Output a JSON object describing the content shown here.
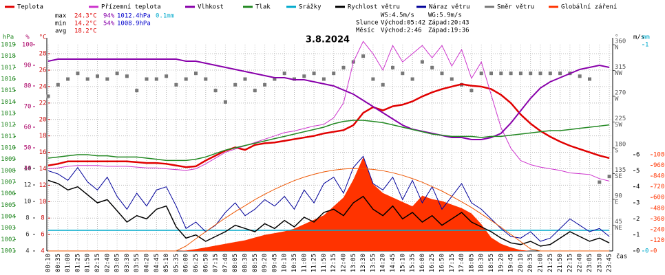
{
  "chart_data": {
    "type": "line",
    "title": "3.8.2024",
    "categories": [
      "00:10",
      "00:35",
      "01:00",
      "01:25",
      "01:50",
      "02:15",
      "02:40",
      "03:05",
      "03:30",
      "03:55",
      "04:20",
      "04:45",
      "05:10",
      "05:35",
      "06:00",
      "06:25",
      "06:50",
      "07:15",
      "07:40",
      "08:05",
      "08:30",
      "08:55",
      "09:20",
      "09:45",
      "10:10",
      "10:35",
      "11:00",
      "11:25",
      "11:50",
      "12:15",
      "12:40",
      "13:05",
      "13:30",
      "13:55",
      "14:20",
      "14:45",
      "15:10",
      "15:35",
      "16:00",
      "16:25",
      "16:50",
      "17:15",
      "17:40",
      "18:05",
      "18:30",
      "18:55",
      "19:20",
      "19:45",
      "20:10",
      "20:35",
      "21:00",
      "21:25",
      "21:50",
      "22:15",
      "22:40",
      "23:05",
      "23:30",
      "23:45"
    ],
    "x_label": "čas",
    "grid": true,
    "axes": {
      "pressure": {
        "unit": "hPa",
        "lim": [
          1001,
          1019
        ],
        "ticks": [
          1001,
          1002,
          1003,
          1004,
          1005,
          1006,
          1007,
          1008,
          1009,
          1010,
          1011,
          1012,
          1013,
          1014,
          1015,
          1016,
          1017,
          1018,
          1019
        ],
        "color": "#228822"
      },
      "humidity": {
        "unit": "%",
        "lim": [
          0,
          100
        ],
        "ticks": [
          40,
          50,
          60,
          70,
          80,
          90,
          100
        ],
        "color": "#aa0066"
      },
      "aux": {
        "lim": [
          4,
          29
        ],
        "ticks": [
          4,
          6,
          8,
          10,
          12,
          14
        ],
        "color": "#333333"
      },
      "temp": {
        "unit": "°C",
        "lim": [
          4,
          29.1
        ],
        "ticks": [
          4,
          6,
          8,
          10,
          12,
          14,
          16,
          18,
          20,
          22,
          24,
          26,
          28
        ],
        "color": "#cc0000"
      },
      "direction": {
        "unit": "°",
        "lim": [
          0,
          360
        ],
        "ticks": [
          {
            "value": 45,
            "label": "NE"
          },
          {
            "value": 90,
            "label": "E"
          },
          {
            "value": 135,
            "label": "SE"
          },
          {
            "value": 180,
            "label": "S"
          },
          {
            "value": 225,
            "label": "SW"
          },
          {
            "value": 270,
            "label": "W"
          },
          {
            "value": 315,
            "label": "NW"
          },
          {
            "value": 360,
            "label": "N"
          }
        ],
        "color": "#555555"
      },
      "wind": {
        "unit": "m/s",
        "lim": [
          0,
          12.86
        ],
        "ticks": [
          0,
          1,
          2,
          3,
          4,
          5,
          6
        ],
        "color": "#000000"
      },
      "rain": {
        "unit": "mm",
        "lim": [
          0,
          1
        ],
        "ticks": [
          0,
          1
        ],
        "color": "#00aacc"
      },
      "radiation": {
        "lim": [
          0,
          2314
        ],
        "ticks": [
          0,
          120,
          240,
          360,
          480,
          600,
          720,
          840,
          960,
          1080
        ],
        "color": "#ff3300"
      }
    },
    "series": [
      {
        "name": "Teplota",
        "color": "#e00000",
        "axis": "temp",
        "style": "line",
        "width": 2.5,
        "values": [
          14.4,
          14.6,
          14.9,
          14.9,
          14.9,
          14.9,
          14.9,
          14.9,
          14.9,
          14.8,
          14.7,
          14.7,
          14.6,
          14.4,
          14.2,
          14.3,
          15.0,
          15.6,
          16.2,
          16.6,
          16.3,
          16.9,
          17.1,
          17.2,
          17.4,
          17.6,
          17.8,
          18.0,
          18.3,
          18.5,
          18.7,
          19.3,
          20.8,
          21.5,
          21.1,
          21.6,
          21.8,
          22.2,
          22.8,
          23.3,
          23.7,
          24.0,
          24.3,
          24.1,
          24.0,
          23.7,
          23.0,
          22.0,
          20.6,
          19.5,
          18.6,
          17.9,
          17.3,
          16.8,
          16.4,
          16.0,
          15.6,
          15.3
        ]
      },
      {
        "name": "Přízemní teplota",
        "color": "#cc33cc",
        "axis": "temp",
        "style": "line",
        "width": 1,
        "values": [
          14.0,
          14.1,
          14.3,
          14.4,
          14.4,
          14.4,
          14.3,
          14.3,
          14.3,
          14.2,
          14.1,
          14.1,
          14.0,
          13.9,
          13.8,
          14.0,
          14.6,
          15.3,
          16.0,
          16.4,
          16.8,
          17.2,
          17.6,
          18.0,
          18.4,
          18.6,
          18.9,
          19.2,
          19.4,
          20.2,
          22.0,
          27.0,
          29.5,
          28.0,
          26.0,
          29.0,
          27.0,
          28.0,
          29.0,
          27.5,
          29.0,
          26.5,
          28.5,
          25.0,
          27.0,
          23.0,
          19.0,
          16.5,
          15.0,
          14.5,
          14.2,
          14.0,
          13.8,
          13.5,
          13.4,
          13.3,
          12.8,
          12.5
        ]
      },
      {
        "name": "Vlhkost",
        "color": "#8800aa",
        "axis": "humidity",
        "style": "line",
        "width": 2,
        "values": [
          92,
          93,
          93,
          93,
          93,
          93,
          93,
          93,
          93,
          93,
          93,
          93,
          93,
          93,
          92,
          92,
          91,
          90,
          89,
          88,
          87,
          86,
          85,
          84,
          84,
          83,
          83,
          82,
          81,
          80,
          78,
          76,
          73,
          70,
          67,
          64,
          61,
          59,
          58,
          57,
          56,
          55,
          55,
          54,
          54,
          55,
          57,
          62,
          68,
          74,
          79,
          82,
          84,
          86,
          88,
          89,
          90,
          89
        ]
      },
      {
        "name": "Tlak",
        "color": "#228822",
        "axis": "pressure",
        "style": "line",
        "width": 1.5,
        "values": [
          1009.1,
          1009.2,
          1009.3,
          1009.4,
          1009.4,
          1009.3,
          1009.3,
          1009.2,
          1009.2,
          1009.2,
          1009.1,
          1009.0,
          1008.9,
          1008.9,
          1008.9,
          1009.0,
          1009.2,
          1009.5,
          1009.8,
          1010.0,
          1010.2,
          1010.4,
          1010.6,
          1010.8,
          1011.0,
          1011.2,
          1011.4,
          1011.6,
          1011.8,
          1012.1,
          1012.3,
          1012.4,
          1012.4,
          1012.3,
          1012.2,
          1012.0,
          1011.8,
          1011.6,
          1011.4,
          1011.2,
          1011.1,
          1011.0,
          1011.0,
          1011.0,
          1010.9,
          1011.0,
          1011.0,
          1011.1,
          1011.2,
          1011.3,
          1011.4,
          1011.5,
          1011.5,
          1011.6,
          1011.7,
          1011.8,
          1011.9,
          1012.0
        ]
      },
      {
        "name": "Srážky",
        "color": "#00aacc",
        "axis": "rain",
        "style": "line",
        "width": 1.5,
        "values": [
          0.1,
          0.1,
          0.1,
          0.1,
          0.1,
          0.1,
          0.1,
          0.1,
          0.1,
          0.1,
          0.1,
          0.1,
          0.1,
          0.1,
          0.1,
          0.1,
          0.1,
          0.1,
          0.1,
          0.1,
          0.1,
          0.1,
          0.1,
          0.1,
          0.1,
          0.1,
          0.1,
          0.1,
          0.1,
          0.1,
          0.1,
          0.1,
          0.1,
          0.1,
          0.1,
          0.1,
          0.1,
          0.1,
          0.1,
          0.1,
          0.1,
          0.1,
          0.1,
          0.1,
          0.1,
          0.1,
          0.1,
          0.1,
          0.1,
          0.1,
          0.1,
          0.1,
          0.1,
          0.1,
          0.1,
          0.1,
          0.1,
          0.1
        ]
      },
      {
        "name": "Rychlost větru",
        "color": "#000000",
        "axis": "wind",
        "style": "line",
        "width": 1.5,
        "values": [
          4.4,
          4.2,
          3.8,
          4.0,
          3.5,
          3.0,
          3.2,
          2.5,
          1.8,
          2.2,
          2.0,
          2.6,
          2.8,
          1.5,
          0.8,
          1.0,
          0.6,
          0.9,
          1.2,
          1.6,
          1.4,
          1.2,
          1.7,
          1.4,
          1.9,
          1.5,
          2.1,
          1.8,
          2.4,
          2.6,
          2.2,
          3.0,
          3.4,
          2.6,
          2.2,
          2.8,
          2.0,
          2.4,
          1.8,
          2.2,
          1.6,
          2.0,
          2.4,
          1.8,
          1.5,
          1.2,
          0.8,
          0.5,
          0.4,
          0.6,
          0.3,
          0.4,
          0.8,
          1.2,
          0.9,
          0.6,
          0.8,
          0.5
        ]
      },
      {
        "name": "Náraz větru",
        "color": "#000099",
        "axis": "wind",
        "style": "line",
        "width": 1,
        "values": [
          5.0,
          4.8,
          4.4,
          5.2,
          4.3,
          3.8,
          4.6,
          3.4,
          2.6,
          3.6,
          2.8,
          3.8,
          4.0,
          2.8,
          1.4,
          1.8,
          1.2,
          1.6,
          2.4,
          3.0,
          2.2,
          2.6,
          3.2,
          2.8,
          3.4,
          2.6,
          3.8,
          3.0,
          4.2,
          4.6,
          3.6,
          5.2,
          5.9,
          4.2,
          3.8,
          4.6,
          3.2,
          4.4,
          3.0,
          4.0,
          2.6,
          3.4,
          4.2,
          3.0,
          2.6,
          2.0,
          1.4,
          0.9,
          0.8,
          1.2,
          0.6,
          0.8,
          1.4,
          2.0,
          1.6,
          1.2,
          1.4,
          0.9
        ]
      },
      {
        "name": "Směr větru",
        "color": "#777777",
        "axis": "direction",
        "style": "squares",
        "values": [
          270,
          290,
          300,
          310,
          300,
          305,
          300,
          310,
          305,
          280,
          300,
          300,
          305,
          290,
          300,
          310,
          300,
          280,
          260,
          290,
          300,
          280,
          290,
          300,
          310,
          300,
          305,
          310,
          300,
          310,
          320,
          330,
          340,
          300,
          290,
          320,
          310,
          300,
          330,
          320,
          310,
          300,
          290,
          280,
          310,
          310,
          310,
          310,
          310,
          310,
          310,
          310,
          310,
          310,
          305,
          300,
          120,
          130
        ]
      },
      {
        "name": "Globální záření",
        "color": "#ff3300",
        "axis": "radiation",
        "style": "area",
        "values": [
          0,
          0,
          0,
          0,
          0,
          0,
          0,
          0,
          0,
          0,
          0,
          0,
          0,
          0,
          5,
          20,
          40,
          60,
          80,
          100,
          120,
          150,
          180,
          200,
          220,
          250,
          300,
          350,
          400,
          500,
          600,
          800,
          1050,
          750,
          650,
          600,
          550,
          500,
          620,
          580,
          560,
          520,
          480,
          420,
          300,
          150,
          80,
          40,
          10,
          0,
          0,
          0,
          0,
          0,
          0,
          0,
          0,
          0
        ]
      },
      {
        "color": "#ee5500",
        "axis": "radiation",
        "style": "line",
        "width": 1,
        "values": [
          0,
          0,
          0,
          0,
          0,
          0,
          0,
          0,
          0,
          0,
          0,
          0,
          0,
          0,
          55,
          137,
          216,
          294,
          370,
          441,
          508,
          576,
          636,
          692,
          742,
          789,
          828,
          860,
          887,
          906,
          919,
          925,
          923,
          915,
          900,
          877,
          848,
          812,
          771,
          722,
          672,
          613,
          551,
          487,
          415,
          342,
          265,
          185,
          104,
          23,
          0,
          0,
          0,
          0,
          0,
          0,
          0,
          0
        ]
      }
    ],
    "stats": [
      {
        "label": "max",
        "values": [
          "24.3°C",
          "94%",
          "1012.4hPa",
          "0.1mm"
        ]
      },
      {
        "label": "min",
        "values": [
          "14.2°C",
          "54%",
          "1008.9hPa"
        ]
      },
      {
        "label": "avg",
        "values": [
          "18.2°C"
        ]
      }
    ],
    "wind_stats": [
      "WS:4.5m/s",
      "WG:5.9m/s"
    ],
    "sun": {
      "label": "Slunce",
      "rise": "Východ:05:42",
      "set": "Západ:20:43"
    },
    "moon": {
      "label": "Měsíc",
      "rise": "Východ:2:46",
      "set": "Západ:19:36"
    }
  }
}
